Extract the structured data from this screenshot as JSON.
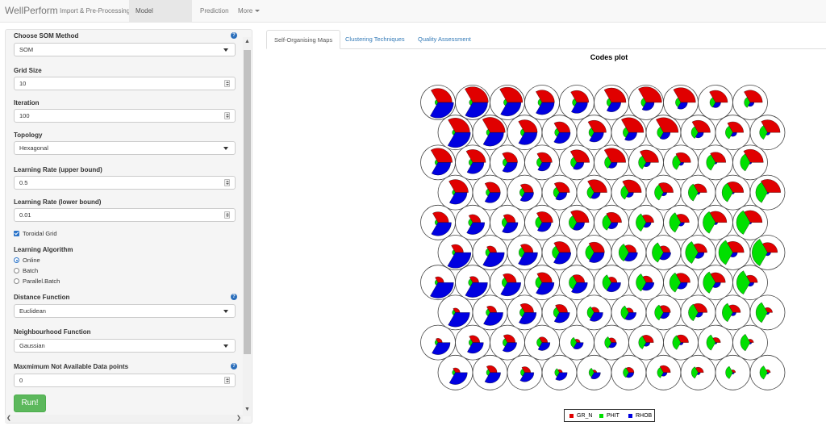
{
  "navbar": {
    "brand": "WellPerform",
    "items": [
      "Import & Pre-Processing",
      "Model Development",
      "Prediction",
      "More"
    ]
  },
  "sidebar": {
    "som_method": {
      "label": "Choose SOM Method",
      "value": "SOM"
    },
    "grid_size": {
      "label": "Grid Size",
      "value": "10"
    },
    "iteration": {
      "label": "Iteration",
      "value": "100"
    },
    "topology": {
      "label": "Topology",
      "value": "Hexagonal"
    },
    "lr_upper": {
      "label": "Learning Rate (upper bound)",
      "value": "0.5"
    },
    "lr_lower": {
      "label": "Learning Rate (lower bound)",
      "value": "0.01"
    },
    "toroidal": {
      "label": "Toroidal Grid",
      "checked": true
    },
    "algorithm": {
      "label": "Learning Algorithm",
      "options": [
        "Online",
        "Batch",
        "Parallel.Batch"
      ],
      "selected": "Online"
    },
    "distance": {
      "label": "Distance Function",
      "value": "Euclidean"
    },
    "neighbourhood": {
      "label": "Neighbourhood Function",
      "value": "Gaussian"
    },
    "max_na": {
      "label": "Maxmimum Not Available Data points",
      "value": "0"
    },
    "run_label": "Run!",
    "help_symbol": "?"
  },
  "tabs": [
    "Self-Organising Maps",
    "Clustering Techniques",
    "Quality Assessment"
  ],
  "plot": {
    "title": "Codes plot",
    "legend": [
      {
        "name": "GR_N",
        "color": "#e00000"
      },
      {
        "name": "PHIT",
        "color": "#00e000"
      },
      {
        "name": "RHOB",
        "color": "#0000e0"
      }
    ]
  }
}
